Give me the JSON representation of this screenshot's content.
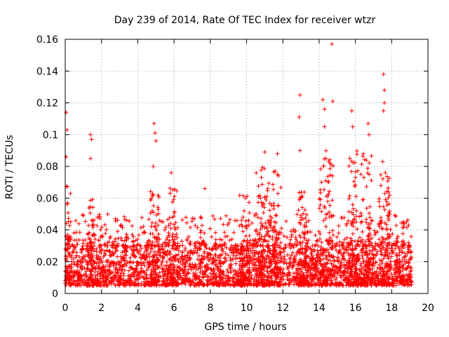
{
  "chart_data": {
    "type": "scatter",
    "title": "Day 239 of 2014, Rate Of TEC Index for receiver wtzr",
    "xlabel": "GPS time / hours",
    "ylabel": "ROTI / TECUs",
    "xlim": [
      0,
      20
    ],
    "ylim": [
      0,
      0.16
    ],
    "x_ticks": [
      0,
      2,
      4,
      6,
      8,
      10,
      12,
      14,
      16,
      18,
      20
    ],
    "y_ticks": [
      0,
      0.02,
      0.04,
      0.06,
      0.08,
      0.1,
      0.12,
      0.14,
      0.16
    ],
    "x_tick_labels": [
      "0",
      "2",
      "4",
      "6",
      "8",
      "10",
      "12",
      "14",
      "16",
      "18",
      "20"
    ],
    "y_tick_labels": [
      "0",
      "0.02",
      "0.04",
      "0.06",
      "0.08",
      "0.1",
      "0.12",
      "0.14",
      "0.16"
    ],
    "grid": true,
    "marker": "+",
    "color": "#ff0000",
    "data_span_hours": [
      0,
      19.1
    ],
    "typical_roti_range": [
      0.005,
      0.03
    ],
    "series": [
      {
        "name": "wtzr",
        "notable_points": [
          {
            "x": 0.05,
            "y": 0.114
          },
          {
            "x": 0.1,
            "y": 0.103
          },
          {
            "x": 0.05,
            "y": 0.086
          },
          {
            "x": 1.4,
            "y": 0.1
          },
          {
            "x": 1.45,
            "y": 0.097
          },
          {
            "x": 1.4,
            "y": 0.085
          },
          {
            "x": 4.9,
            "y": 0.107
          },
          {
            "x": 4.95,
            "y": 0.101
          },
          {
            "x": 5.0,
            "y": 0.096
          },
          {
            "x": 4.85,
            "y": 0.08
          },
          {
            "x": 5.85,
            "y": 0.076
          },
          {
            "x": 7.7,
            "y": 0.066
          },
          {
            "x": 11.0,
            "y": 0.089
          },
          {
            "x": 11.7,
            "y": 0.088
          },
          {
            "x": 12.95,
            "y": 0.125
          },
          {
            "x": 12.9,
            "y": 0.111
          },
          {
            "x": 12.95,
            "y": 0.09
          },
          {
            "x": 14.2,
            "y": 0.122
          },
          {
            "x": 14.3,
            "y": 0.116
          },
          {
            "x": 14.3,
            "y": 0.105
          },
          {
            "x": 14.7,
            "y": 0.157
          },
          {
            "x": 14.75,
            "y": 0.121
          },
          {
            "x": 15.8,
            "y": 0.115
          },
          {
            "x": 15.85,
            "y": 0.105
          },
          {
            "x": 16.7,
            "y": 0.107
          },
          {
            "x": 16.75,
            "y": 0.1
          },
          {
            "x": 17.55,
            "y": 0.138
          },
          {
            "x": 17.6,
            "y": 0.128
          },
          {
            "x": 17.6,
            "y": 0.12
          },
          {
            "x": 17.55,
            "y": 0.115
          },
          {
            "x": 17.5,
            "y": 0.083
          },
          {
            "x": 17.65,
            "y": 0.076
          }
        ],
        "activity_windows": [
          {
            "hours": [
              0.0,
              0.3
            ],
            "peak": 0.069
          },
          {
            "hours": [
              1.2,
              1.6
            ],
            "peak": 0.06
          },
          {
            "hours": [
              4.7,
              5.2
            ],
            "peak": 0.065
          },
          {
            "hours": [
              5.6,
              6.2
            ],
            "peak": 0.068
          },
          {
            "hours": [
              9.6,
              10.2
            ],
            "peak": 0.062
          },
          {
            "hours": [
              10.5,
              11.9
            ],
            "peak": 0.08
          },
          {
            "hours": [
              12.8,
              13.3
            ],
            "peak": 0.065
          },
          {
            "hours": [
              14.0,
              14.8
            ],
            "peak": 0.09
          },
          {
            "hours": [
              15.6,
              16.9
            ],
            "peak": 0.09
          },
          {
            "hours": [
              17.3,
              17.9
            ],
            "peak": 0.075
          }
        ]
      }
    ]
  }
}
